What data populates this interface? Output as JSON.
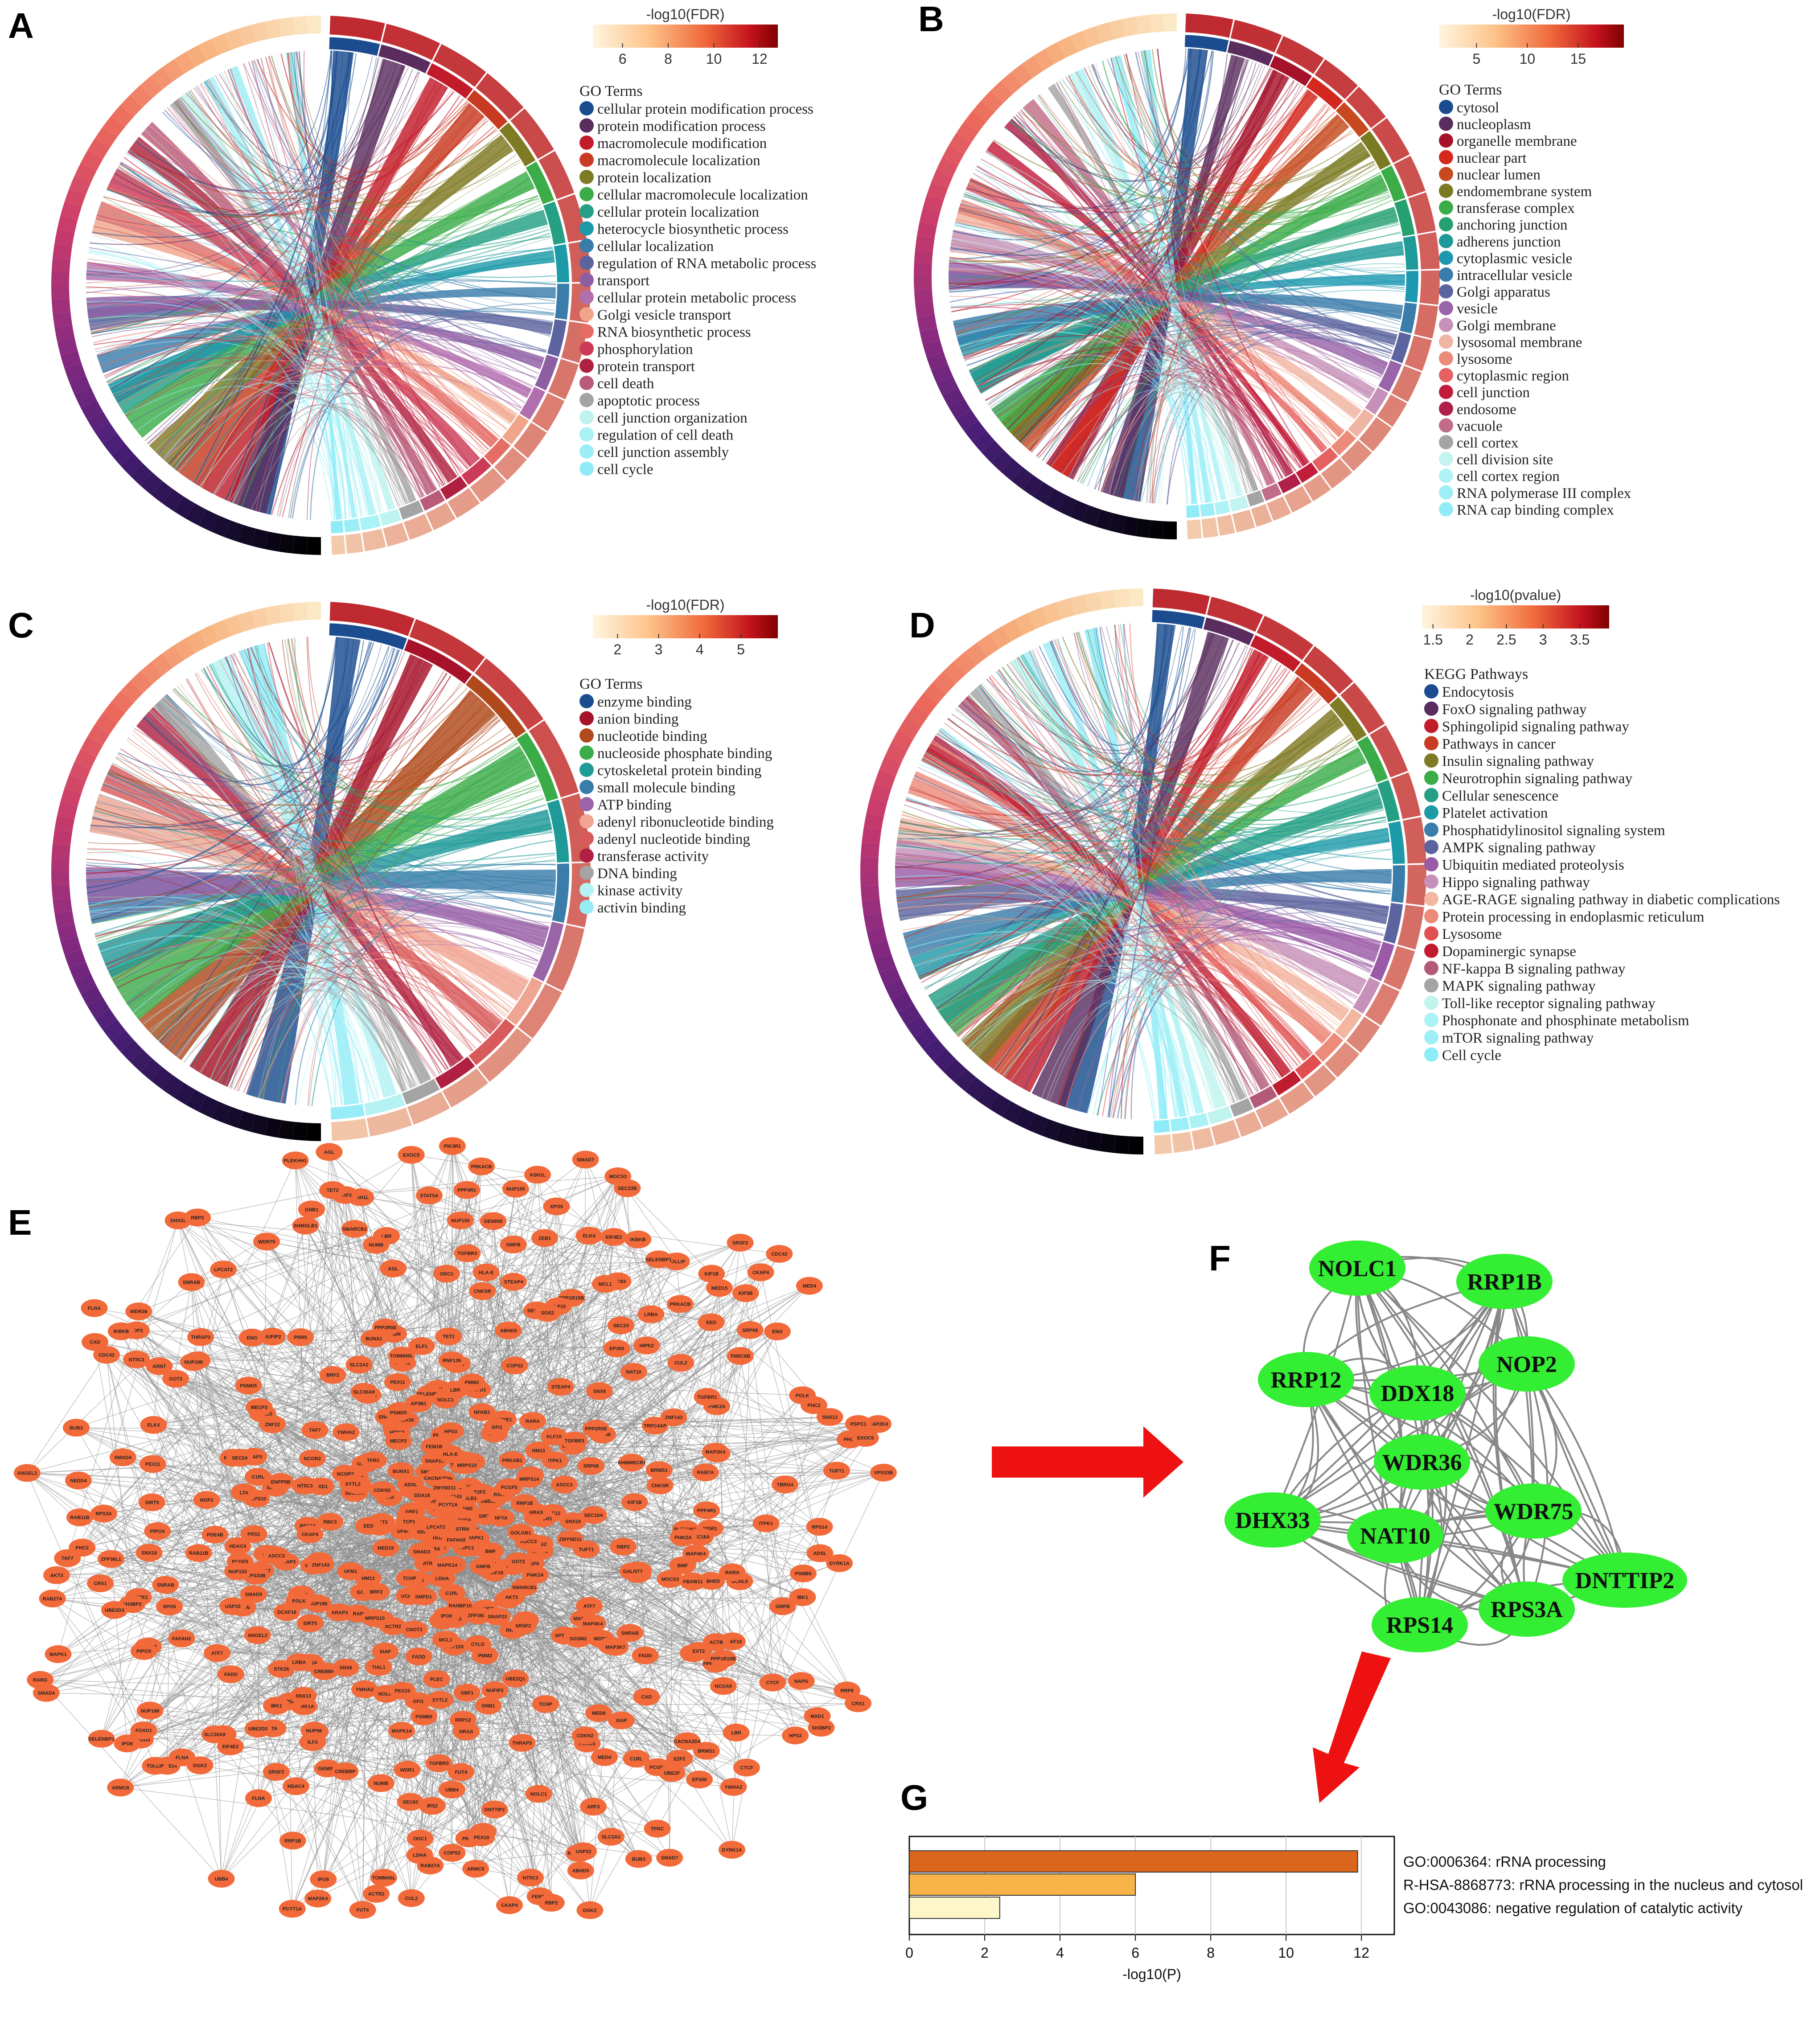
{
  "panels": {
    "A": "A",
    "B": "B",
    "C": "C",
    "D": "D",
    "E": "E",
    "F": "F",
    "G": "G"
  },
  "chart_data": [
    {
      "type": "chord",
      "panel": "A",
      "colorbar": {
        "title": "-log10(FDR)",
        "ticks": [
          6,
          8,
          10,
          12
        ],
        "range": [
          4.7,
          12.8
        ]
      },
      "legend_title": "GO Terms",
      "terms": [
        {
          "name": "cellular protein modification process",
          "color": "#1a4c8f"
        },
        {
          "name": "protein modification process",
          "color": "#5a2d5e"
        },
        {
          "name": "macromolecule modification",
          "color": "#c21c2b"
        },
        {
          "name": "macromolecule localization",
          "color": "#c83a22"
        },
        {
          "name": "protein localization",
          "color": "#7f7a24"
        },
        {
          "name": "cellular macromolecule localization",
          "color": "#3aac48"
        },
        {
          "name": "cellular protein localization",
          "color": "#25a085"
        },
        {
          "name": "heterocycle biosynthetic process",
          "color": "#1c9aa8"
        },
        {
          "name": "cellular localization",
          "color": "#3a7dab"
        },
        {
          "name": "regulation of RNA metabolic process",
          "color": "#5b649e"
        },
        {
          "name": "transport",
          "color": "#8e5ea3"
        },
        {
          "name": "cellular protein metabolic process",
          "color": "#b26fae"
        },
        {
          "name": "Golgi vesicle transport",
          "color": "#f0a58a"
        },
        {
          "name": "RNA biosynthetic process",
          "color": "#e56d66"
        },
        {
          "name": "phosphorylation",
          "color": "#cc3b55"
        },
        {
          "name": "protein transport",
          "color": "#b0213f"
        },
        {
          "name": "cell death",
          "color": "#b85a78"
        },
        {
          "name": "apoptotic process",
          "color": "#a4a4a4"
        },
        {
          "name": "cell junction organization",
          "color": "#bff3ef"
        },
        {
          "name": "regulation of cell death",
          "color": "#a9f2f5"
        },
        {
          "name": "cell junction assembly",
          "color": "#9beef5"
        },
        {
          "name": "cell cycle",
          "color": "#8fecf7"
        }
      ]
    },
    {
      "type": "chord",
      "panel": "B",
      "colorbar": {
        "title": "-log10(FDR)",
        "ticks": [
          5,
          10,
          15
        ],
        "range": [
          1.3,
          19.5
        ]
      },
      "legend_title": "GO Terms",
      "terms": [
        {
          "name": "cytosol",
          "color": "#1a4c8f"
        },
        {
          "name": "nucleoplasm",
          "color": "#5a2d5e"
        },
        {
          "name": "organelle membrane",
          "color": "#a6122a"
        },
        {
          "name": "nuclear part",
          "color": "#d4281e"
        },
        {
          "name": "nuclear lumen",
          "color": "#c64a1e"
        },
        {
          "name": "endomembrane system",
          "color": "#7a7a22"
        },
        {
          "name": "transferase complex",
          "color": "#3aac48"
        },
        {
          "name": "anchoring junction",
          "color": "#25a070"
        },
        {
          "name": "adherens junction",
          "color": "#1f9a98"
        },
        {
          "name": "cytoplasmic vesicle",
          "color": "#1c98b0"
        },
        {
          "name": "intracellular vesicle",
          "color": "#3a7dab"
        },
        {
          "name": "Golgi apparatus",
          "color": "#5b649e"
        },
        {
          "name": "vesicle",
          "color": "#9a64a8"
        },
        {
          "name": "Golgi membrane",
          "color": "#c690b8"
        },
        {
          "name": "lysosomal membrane",
          "color": "#f0b4a2"
        },
        {
          "name": "lysosome",
          "color": "#ed8b7a"
        },
        {
          "name": "cytoplasmic region",
          "color": "#e56060"
        },
        {
          "name": "cell junction",
          "color": "#c21c3a"
        },
        {
          "name": "endosome",
          "color": "#b02048"
        },
        {
          "name": "vacuole",
          "color": "#c26c88"
        },
        {
          "name": "cell cortex",
          "color": "#a4a4a4"
        },
        {
          "name": "cell division site",
          "color": "#c4f4f0"
        },
        {
          "name": "cell cortex region",
          "color": "#b0f2f6"
        },
        {
          "name": "RNA polymerase III complex",
          "color": "#9eeef7"
        },
        {
          "name": "RNA cap binding complex",
          "color": "#92ecf8"
        }
      ]
    },
    {
      "type": "chord",
      "panel": "C",
      "colorbar": {
        "title": "-log10(FDR)",
        "ticks": [
          2,
          3,
          4,
          5
        ],
        "range": [
          1.4,
          5.9
        ]
      },
      "legend_title": "GO Terms",
      "terms": [
        {
          "name": "enzyme binding",
          "color": "#1a4c8f"
        },
        {
          "name": "anion binding",
          "color": "#a6122a"
        },
        {
          "name": "nucleotide binding",
          "color": "#b04a1c"
        },
        {
          "name": "nucleoside phosphate binding",
          "color": "#3aac48"
        },
        {
          "name": "cytoskeletal protein binding",
          "color": "#1f9a98"
        },
        {
          "name": "small molecule binding",
          "color": "#3a7dab"
        },
        {
          "name": "ATP binding",
          "color": "#9a64a8"
        },
        {
          "name": "adenyl ribonucleotide binding",
          "color": "#f0a592"
        },
        {
          "name": "adenyl nucleotide binding",
          "color": "#d85a5a"
        },
        {
          "name": "transferase activity",
          "color": "#b02040"
        },
        {
          "name": "DNA binding",
          "color": "#a4a4a4"
        },
        {
          "name": "kinase activity",
          "color": "#b4f2f4"
        },
        {
          "name": "activin binding",
          "color": "#96edf7"
        }
      ]
    },
    {
      "type": "chord",
      "panel": "D",
      "colorbar": {
        "title": "-log10(pvalue)",
        "ticks": [
          1.5,
          2.0,
          2.5,
          3.0,
          3.5
        ],
        "range": [
          1.35,
          3.9
        ]
      },
      "legend_title": "KEGG Pathways",
      "terms": [
        {
          "name": "Endocytosis",
          "color": "#1a4c8f"
        },
        {
          "name": "FoxO signaling pathway",
          "color": "#5a2d5e"
        },
        {
          "name": "Sphingolipid signaling pathway",
          "color": "#c21c2b"
        },
        {
          "name": "Pathways in cancer",
          "color": "#c83a22"
        },
        {
          "name": "Insulin signaling pathway",
          "color": "#7f7a24"
        },
        {
          "name": "Neurotrophin signaling pathway",
          "color": "#3aac48"
        },
        {
          "name": "Cellular senescence",
          "color": "#25a085"
        },
        {
          "name": "Platelet activation",
          "color": "#1c9aa8"
        },
        {
          "name": "Phosphatidylinositol signaling system",
          "color": "#3a7dab"
        },
        {
          "name": "AMPK signaling pathway",
          "color": "#5b649e"
        },
        {
          "name": "Ubiquitin mediated proteolysis",
          "color": "#9a5aa6"
        },
        {
          "name": "Hippo signaling pathway",
          "color": "#c690b8"
        },
        {
          "name": "AGE-RAGE signaling pathway in diabetic complications",
          "color": "#f3b6a0"
        },
        {
          "name": "Protein processing in endoplasmic reticulum",
          "color": "#ed8b7a"
        },
        {
          "name": "Lysosome",
          "color": "#e05050"
        },
        {
          "name": "Dopaminergic synapse",
          "color": "#c01c30"
        },
        {
          "name": "NF-kappa B signaling pathway",
          "color": "#b25a78"
        },
        {
          "name": "MAPK signaling pathway",
          "color": "#a4a4a4"
        },
        {
          "name": "Toll-like receptor signaling pathway",
          "color": "#c2f4ee"
        },
        {
          "name": "Phosphonate and phosphinate metabolism",
          "color": "#aaf2f5"
        },
        {
          "name": "mTOR signaling pathway",
          "color": "#9ceef7"
        },
        {
          "name": "Cell cycle",
          "color": "#8eecf8"
        }
      ]
    },
    {
      "type": "network",
      "panel": "E",
      "node_color": "#f26a3a",
      "labels": [
        "RNF139",
        "SGSM2",
        "PPP2R5E",
        "HPS3",
        "SOS2",
        "ARMC8",
        "NOLC1",
        "MAP2K4",
        "SH3BP2",
        "ANGEL2",
        "MED15",
        "LBR",
        "WDR1",
        "RANBP10",
        "UBB4",
        "YWHAZ",
        "PHC2",
        "UBE2D3",
        "BMF",
        "DYRK1A",
        "PPP1R15B",
        "STEAP4",
        "C1RL",
        "SEC16A",
        "PCYT1A",
        "IBK1",
        "ARAP3",
        "GMFB",
        "GFI1",
        "TGFBR3",
        "SMPD1",
        "TCHP",
        "SIRT5",
        "ODC1",
        "PCGF5",
        "LRBA",
        "CKAP4",
        "RARA",
        "TGFBR1",
        "PLEKHH1",
        "XPO5",
        "MRPS10",
        "PEX19",
        "GOT2",
        "ABHD5",
        "DCAF16",
        "ASCC3",
        "RBP2",
        "PI4K2A",
        "PPP4R1",
        "THRAP3",
        "SRSF2",
        "ZNF143",
        "SELENBP1",
        "NUP98",
        "FLNA",
        "SNRAB",
        "ENG",
        "NT5C3",
        "NUP188",
        "MAPK14",
        "FADD",
        "IPO8",
        "NAPG",
        "ZNF12",
        "CNKSR",
        "PRKACB",
        "CACNA2D4",
        "SNAP23",
        "SMAD5",
        "EXT2",
        "FBXW11",
        "AHMMECR1",
        "CRX1",
        "TBC1D2",
        "MRPS14",
        "UBE2Q1",
        "CAD",
        "NFKB1",
        "HUWE1",
        "NFYA",
        "NRAS",
        "PTGS2",
        "RARG",
        "GOLGB1",
        "HM13",
        "PSMD5",
        "UCHL5",
        "RAB11B",
        "ZMYND11",
        "ELF1",
        "TIAL1",
        "NCOA5",
        "ASH1L",
        "UFM1",
        "TOMM40L",
        "HLA-E",
        "EED",
        "TOLLIP",
        "DDX18",
        "MXD1",
        "SNX6",
        "LTA",
        "GEMIN5",
        "UBE2E1",
        "CRBN",
        "PEX11",
        "RBC3",
        "RPS3A",
        "NOP2",
        "WDR36",
        "DHX33",
        "NAT10",
        "WDR75",
        "DNTTIP2",
        "RPS14",
        "RRP12",
        "RRP1B",
        "LDHA",
        "PSMB5",
        "AKT3",
        "STAT5A",
        "SMAD7",
        "PMM2",
        "ARNT",
        "DGKZ",
        "FOXO1",
        "CYLD",
        "CPSF6",
        "ELK4",
        "TNRC6B",
        "MAP4K4",
        "POLK",
        "SEC23B",
        "SEC63",
        "ADSL",
        "EIF4E2",
        "CDKN2",
        "CREBBP",
        "RRP8",
        "BUB3",
        "UBE2F",
        "CDC42",
        "SPTLC1",
        "PIK3R1",
        "STK26",
        "KIF1B",
        "HIPK2",
        "CHD4",
        "ACTR2",
        "MCL1",
        "RAB27A",
        "ZEB1",
        "GNB1",
        "ATF7",
        "MAP3K7",
        "CTCF",
        "NEDD4",
        "MED4",
        "BRMS1",
        "SMARCB1",
        "MECP2",
        "SMAD4",
        "PLEC",
        "TRPC4AP",
        "XIAP",
        "PRR5",
        "NUP155",
        "FRS2",
        "ITPK1",
        "ARF3",
        "NUMB",
        "PRKAB1",
        "GBF1",
        "ACTB",
        "SNX18",
        "ATR",
        "BRF2",
        "E2F2",
        "VPS33B",
        "TCP1",
        "NSF",
        "TAF7",
        "MED8",
        "BUNX1",
        "USP33",
        "COPS2",
        "EXOC5",
        "TUFT1",
        "NUFIP2",
        "SMAD3",
        "IKBKB",
        "MAPK1",
        "TFRC",
        "SEC24",
        "EP300",
        "CUL2",
        "MOCS3",
        "SYTL2",
        "KIF5B",
        "AP3B1",
        "NCOR2",
        "PSPC1",
        "HDAC4",
        "PDE4B",
        "ENPP5B",
        "SRP68",
        "FEM1B",
        "SLC2A2",
        "ILF3",
        "GALNT7",
        "TET2",
        "LPCAT2",
        "SHMGLB1",
        "KLF10",
        "STRN",
        "FAFAH2",
        "TBRG4",
        "PIPOX",
        "SLC30A9",
        "AGL",
        "FUT4",
        "CNOT3",
        "ZFP36L1",
        "SNX13",
        "IRS2",
        "RAB7A",
        "NUP153"
      ]
    },
    {
      "type": "network",
      "panel": "F",
      "node_color": "#33ee33",
      "nodes": [
        "NOLC1",
        "RRP1B",
        "RRP12",
        "DDX18",
        "NOP2",
        "WDR36",
        "DHX33",
        "NAT10",
        "WDR75",
        "DNTTIP2",
        "RPS14",
        "RPS3A"
      ]
    },
    {
      "type": "bar",
      "panel": "G",
      "orientation": "horizontal",
      "categories": [
        "GO:0006364: rRNA processing",
        "R-HSA-8868773: rRNA processing in the nucleus and cytosol",
        "GO:0043086: negative regulation of catalytic activity"
      ],
      "values": [
        11.9,
        6.0,
        2.4
      ],
      "colors": [
        "#d9661a",
        "#f8b448",
        "#fdf6c8"
      ],
      "xlabel": "-log10(P)",
      "xlim": [
        0,
        12.4
      ],
      "xticks": [
        0,
        2,
        4,
        6,
        8,
        10,
        12
      ]
    }
  ]
}
